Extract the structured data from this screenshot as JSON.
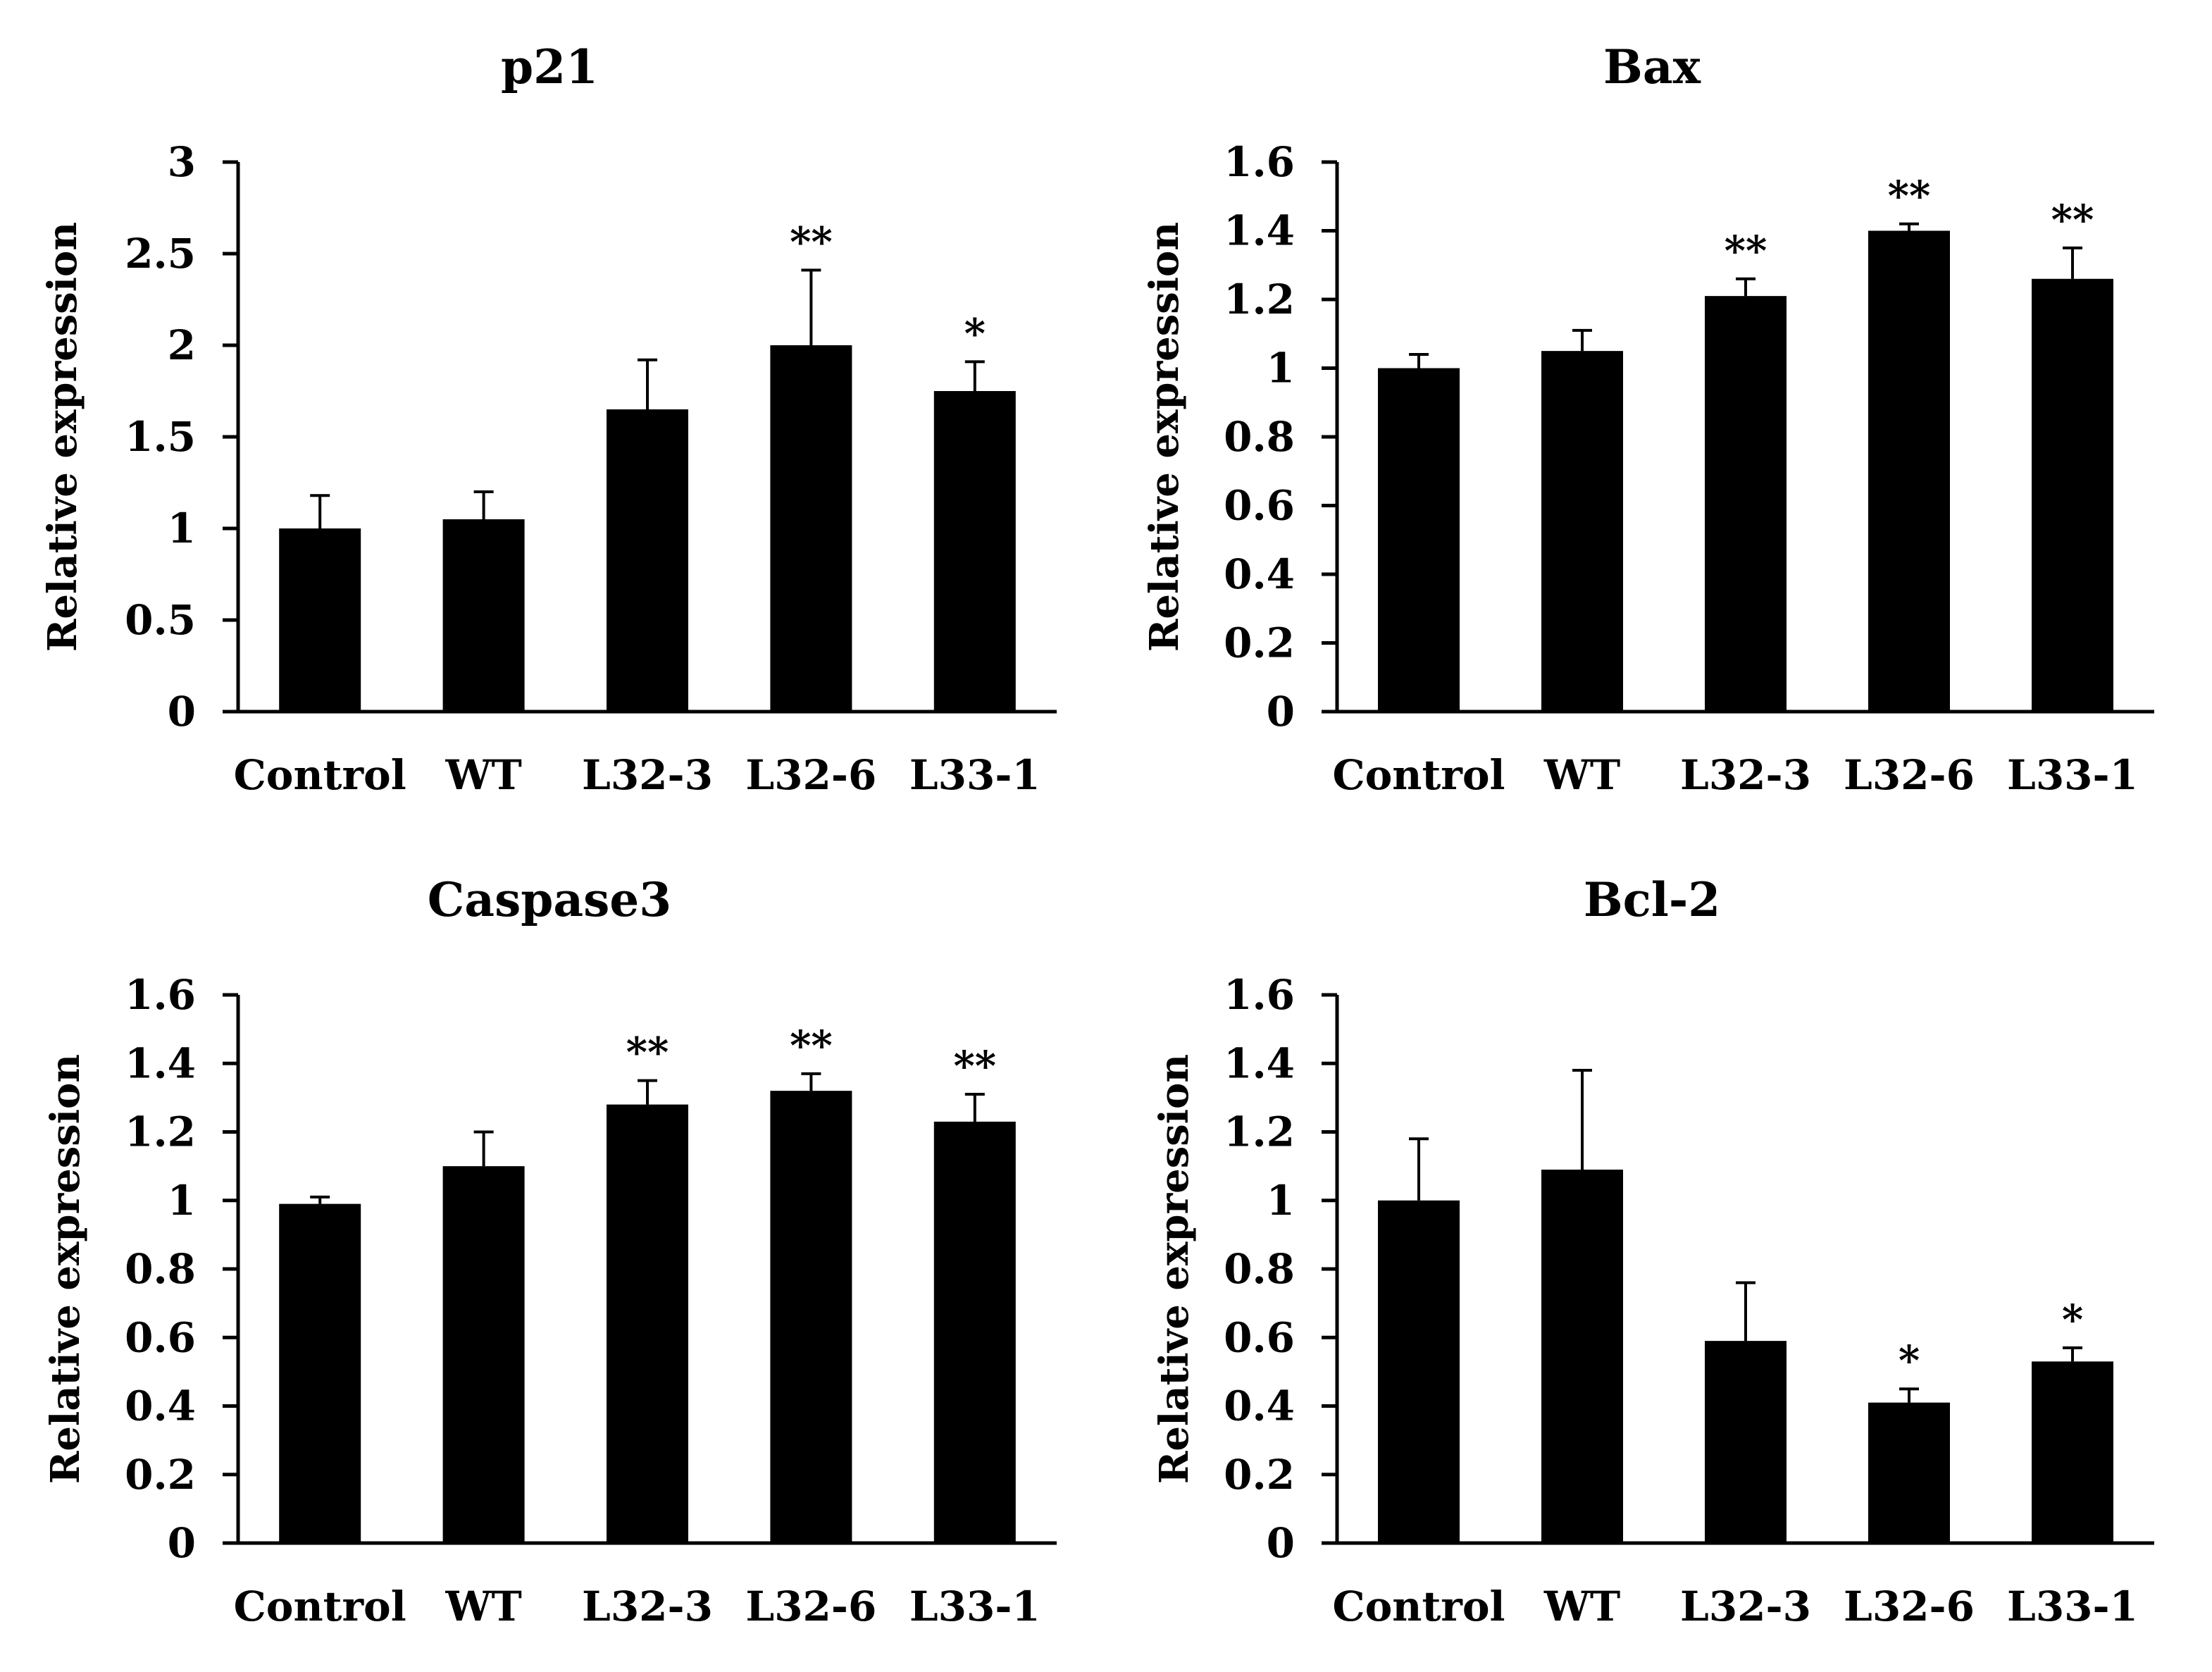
{
  "chart_data": [
    {
      "type": "bar",
      "title": "p21",
      "ylabel": "Relative expression",
      "xlabel": "",
      "categories": [
        "Control",
        "WT",
        "L32-3",
        "L32-6",
        "L33-1"
      ],
      "values": [
        1.0,
        1.05,
        1.65,
        2.0,
        1.75
      ],
      "errors": [
        0.18,
        0.15,
        0.27,
        0.41,
        0.16
      ],
      "significance": [
        "",
        "",
        "",
        "**",
        "*"
      ],
      "ylim": [
        0,
        3
      ],
      "yticks": [
        0,
        0.5,
        1,
        1.5,
        2,
        2.5,
        3
      ],
      "ytick_labels": [
        "0",
        "0.5",
        "1",
        "1.5",
        "2",
        "2.5",
        "3"
      ],
      "bar_color": "#000000",
      "grid": false,
      "legend": "none"
    },
    {
      "type": "bar",
      "title": "Bax",
      "ylabel": "Relative expression",
      "xlabel": "",
      "categories": [
        "Control",
        "WT",
        "L32-3",
        "L32-6",
        "L33-1"
      ],
      "values": [
        1.0,
        1.05,
        1.21,
        1.4,
        1.26
      ],
      "errors": [
        0.04,
        0.06,
        0.05,
        0.02,
        0.09
      ],
      "significance": [
        "",
        "",
        "**",
        "**",
        "**"
      ],
      "ylim": [
        0,
        1.6
      ],
      "yticks": [
        0,
        0.2,
        0.4,
        0.6,
        0.8,
        1,
        1.2,
        1.4,
        1.6
      ],
      "ytick_labels": [
        "0",
        "0.2",
        "0.4",
        "0.6",
        "0.8",
        "1",
        "1.2",
        "1.4",
        "1.6"
      ],
      "bar_color": "#000000",
      "grid": false,
      "legend": "none"
    },
    {
      "type": "bar",
      "title": "Caspase3",
      "ylabel": "Relative expression",
      "xlabel": "",
      "categories": [
        "Control",
        "WT",
        "L32-3",
        "L32-6",
        "L33-1"
      ],
      "values": [
        0.99,
        1.1,
        1.28,
        1.32,
        1.23
      ],
      "errors": [
        0.02,
        0.1,
        0.07,
        0.05,
        0.08
      ],
      "significance": [
        "",
        "",
        "**",
        "**",
        "**"
      ],
      "ylim": [
        0,
        1.6
      ],
      "yticks": [
        0,
        0.2,
        0.4,
        0.6,
        0.8,
        1,
        1.2,
        1.4,
        1.6
      ],
      "ytick_labels": [
        "0",
        "0.2",
        "0.4",
        "0.6",
        "0.8",
        "1",
        "1.2",
        "1.4",
        "1.6"
      ],
      "bar_color": "#000000",
      "grid": false,
      "legend": "none"
    },
    {
      "type": "bar",
      "title": "Bcl-2",
      "ylabel": "Relative expression",
      "xlabel": "",
      "categories": [
        "Control",
        "WT",
        "L32-3",
        "L32-6",
        "L33-1"
      ],
      "values": [
        1.0,
        1.09,
        0.59,
        0.41,
        0.53
      ],
      "errors": [
        0.18,
        0.29,
        0.17,
        0.04,
        0.04
      ],
      "significance": [
        "",
        "",
        "",
        "*",
        "*"
      ],
      "ylim": [
        0,
        1.6
      ],
      "yticks": [
        0,
        0.2,
        0.4,
        0.6,
        0.8,
        1,
        1.2,
        1.4,
        1.6
      ],
      "ytick_labels": [
        "0",
        "0.2",
        "0.4",
        "0.6",
        "0.8",
        "1",
        "1.2",
        "1.4",
        "1.6"
      ],
      "bar_color": "#000000",
      "grid": false,
      "legend": "none"
    }
  ]
}
